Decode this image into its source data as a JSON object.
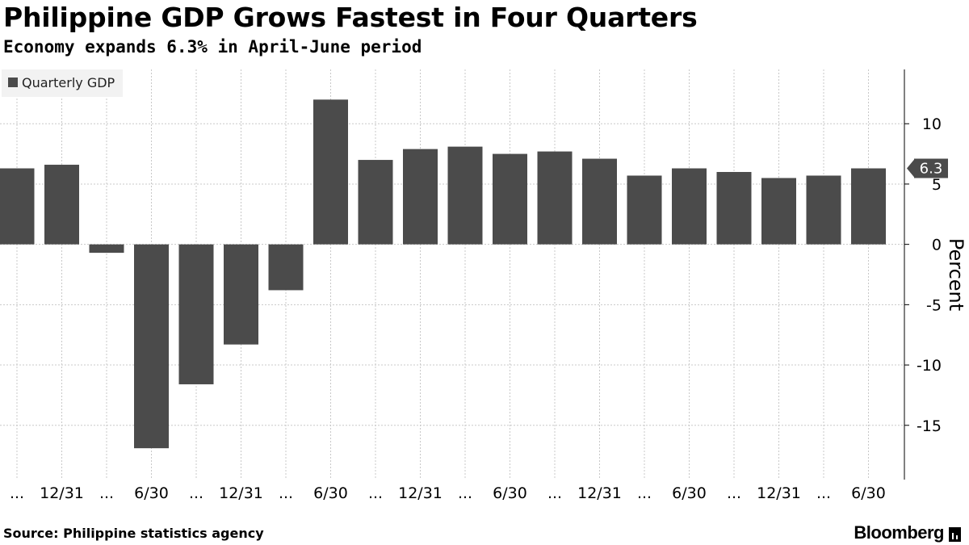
{
  "header": {
    "title": "Philippine GDP Grows Fastest in Four Quarters",
    "subtitle": "Economy expands 6.3% in April-June period"
  },
  "footer": {
    "source": "Source: Philippine statistics agency",
    "brand": "Bloomberg"
  },
  "colors": {
    "bar": "#4b4b4b",
    "grid": "#c8c8c8",
    "axis": "#000000",
    "label_bg": "#4b4b4b"
  },
  "chart_data": {
    "type": "bar",
    "title": "Philippine GDP Grows Fastest in Four Quarters",
    "subtitle": "Economy expands 6.3% in April-June period",
    "xlabel": "",
    "ylabel": "Percent",
    "ylim": [
      -19.5,
      14.5
    ],
    "yticks": [
      10,
      5,
      0,
      -5,
      -10,
      -15
    ],
    "ytick_labels": [
      "10",
      "5",
      "0",
      "-5",
      "-10",
      "-15"
    ],
    "grid": true,
    "legend": {
      "position": "top-left",
      "entries": [
        "Quarterly GDP"
      ]
    },
    "categories": [
      "...",
      "12/31",
      "...",
      "6/30",
      "...",
      "12/31",
      "...",
      "6/30",
      "...",
      "12/31",
      "...",
      "6/30",
      "...",
      "12/31",
      "...",
      "6/30",
      "...",
      "12/31",
      "...",
      "6/30"
    ],
    "series": [
      {
        "name": "Quarterly GDP",
        "values": [
          6.3,
          6.6,
          -0.7,
          -16.9,
          -11.6,
          -8.3,
          -3.8,
          12.0,
          7.0,
          7.9,
          8.1,
          7.5,
          7.7,
          7.1,
          5.7,
          6.3,
          6.0,
          5.5,
          5.7,
          6.3
        ]
      }
    ],
    "last_value_label": "6.3"
  }
}
